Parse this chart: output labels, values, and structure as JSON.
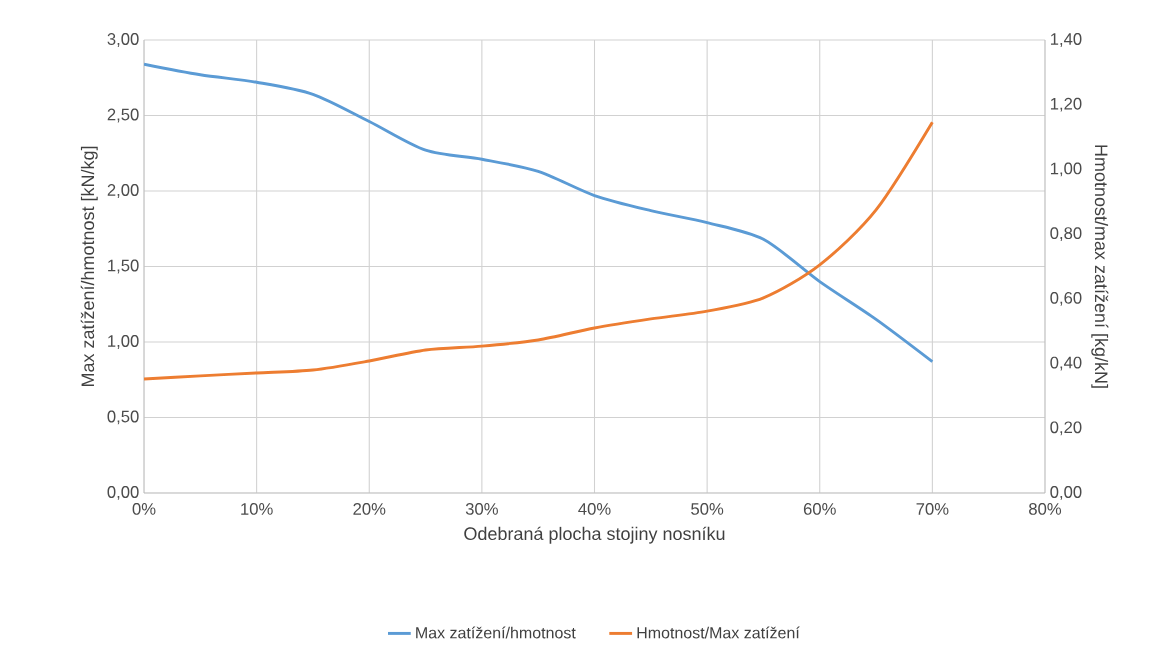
{
  "chart_data": {
    "type": "line",
    "xlabel": "Odebraná plocha stojiny nosníku",
    "ylabel": "Max zatížení/hmotnost [kN/kg]",
    "y2label": "Hmotnost/max zatížení [kg/kN]",
    "x": [
      0,
      5,
      10,
      15,
      20,
      25,
      30,
      35,
      40,
      45,
      50,
      55,
      60,
      65,
      70
    ],
    "series": [
      {
        "name": "Max zatížení/hmotnost",
        "color": "#5b9bd5",
        "values": [
          2.84,
          2.77,
          2.72,
          2.64,
          2.46,
          2.27,
          2.21,
          2.13,
          1.97,
          1.87,
          1.79,
          1.68,
          1.4,
          1.15,
          0.87
        ]
      },
      {
        "name": "Hmotnost/Max zatížení",
        "color": "#ed7d31",
        "axis": "y2",
        "values": [
          0.352,
          0.362,
          0.371,
          0.38,
          0.408,
          0.442,
          0.454,
          0.473,
          0.51,
          0.538,
          0.562,
          0.603,
          0.705,
          0.875,
          1.146
        ]
      }
    ],
    "xlim": [
      0,
      80
    ],
    "xticks": [
      {
        "value": 0,
        "label": "0%"
      },
      {
        "value": 10,
        "label": "10%"
      },
      {
        "value": 20,
        "label": "20%"
      },
      {
        "value": 30,
        "label": "30%"
      },
      {
        "value": 40,
        "label": "40%"
      },
      {
        "value": 50,
        "label": "50%"
      },
      {
        "value": 60,
        "label": "60%"
      },
      {
        "value": 70,
        "label": "70%"
      },
      {
        "value": 80,
        "label": "80%"
      }
    ],
    "ylim": [
      0,
      3
    ],
    "yticks": [
      {
        "value": 0,
        "label": "0,00"
      },
      {
        "value": 0.5,
        "label": "0,50"
      },
      {
        "value": 1,
        "label": "1,00"
      },
      {
        "value": 1.5,
        "label": "1,50"
      },
      {
        "value": 2,
        "label": "2,00"
      },
      {
        "value": 2.5,
        "label": "2,50"
      },
      {
        "value": 3,
        "label": "3,00"
      }
    ],
    "y2lim": [
      0,
      1.4
    ],
    "y2ticks": [
      {
        "value": 0,
        "label": "0,00"
      },
      {
        "value": 0.2,
        "label": "0,20"
      },
      {
        "value": 0.4,
        "label": "0,40"
      },
      {
        "value": 0.6,
        "label": "0,60"
      },
      {
        "value": 0.8,
        "label": "0,80"
      },
      {
        "value": 1,
        "label": "1,00"
      },
      {
        "value": 1.2,
        "label": "1,20"
      },
      {
        "value": 1.4,
        "label": "1,40"
      }
    ],
    "grid": true,
    "legend": "bottom",
    "marker": "none",
    "line_style": "solid"
  }
}
